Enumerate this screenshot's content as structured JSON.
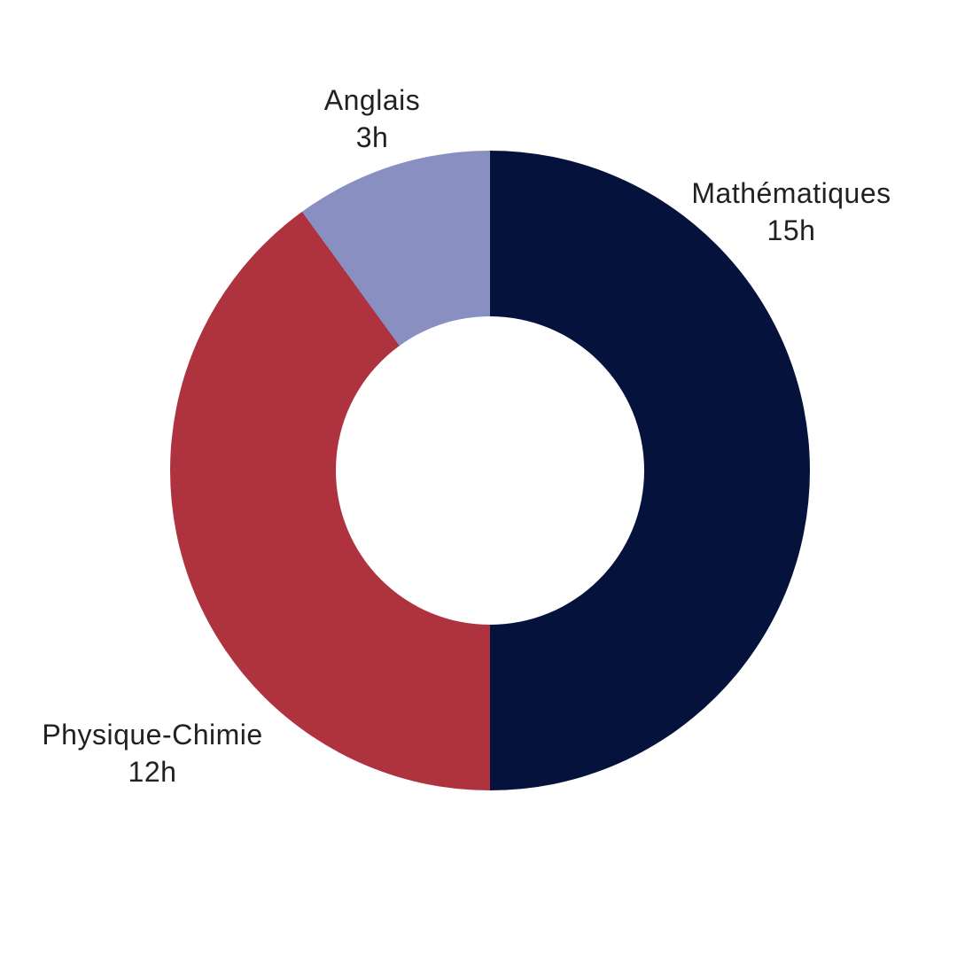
{
  "chart_data": {
    "type": "pie",
    "variant": "donut",
    "title": "",
    "unit": "h",
    "total": 30,
    "start_angle_deg": 0,
    "direction": "clockwise",
    "inner_radius_ratio": 0.48,
    "legend_position": "none",
    "labels_position": "outside",
    "background_color": "#ffffff",
    "label_text_color": "#212121",
    "segments": [
      {
        "label": "Mathématiques",
        "value": 15,
        "value_label": "15h",
        "percent": 50,
        "color": "#05133c"
      },
      {
        "label": "Physique-Chimie",
        "value": 12,
        "value_label": "12h",
        "percent": 40,
        "color": "#ae333f"
      },
      {
        "label": "Anglais",
        "value": 3,
        "value_label": "3h",
        "percent": 10,
        "color": "#8990c1"
      }
    ]
  }
}
